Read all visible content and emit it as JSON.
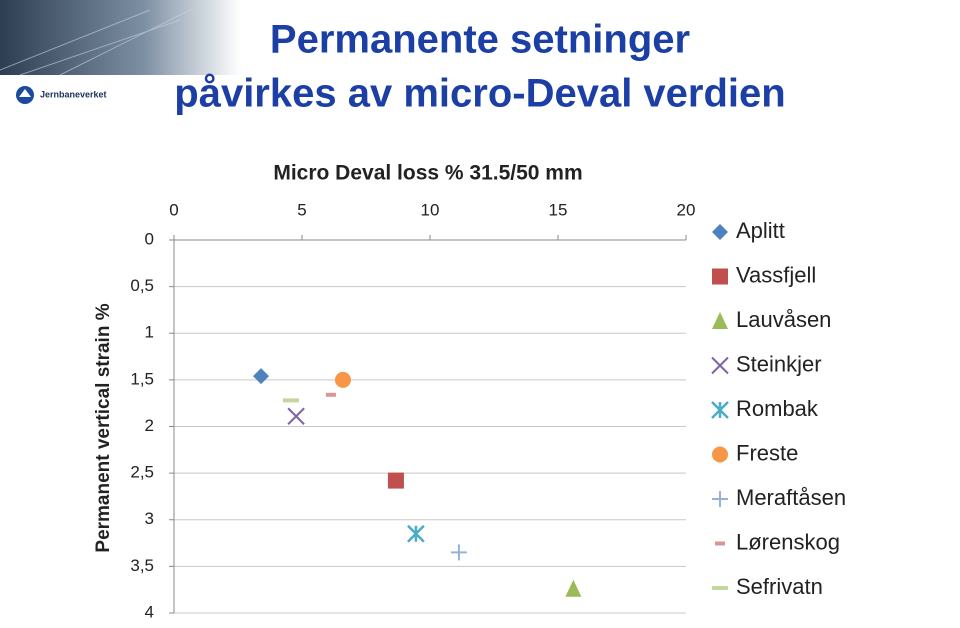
{
  "header": {
    "title": [
      "Permanente setninger",
      "påvirkes av micro-Deval verdien"
    ],
    "logo": "Jernbaneverket"
  },
  "chart_data": {
    "type": "scatter",
    "title": "Micro Deval loss  %  31.5/50 mm",
    "y_label": "Permanent vertical strain  %",
    "xlim": [
      0,
      20
    ],
    "xticks": [
      0,
      5,
      10,
      15,
      20
    ],
    "x_axis_position": "top",
    "ylim": [
      0,
      4
    ],
    "y_reversed": true,
    "grid": true,
    "yticks": [
      0,
      {
        "value": 0.5,
        "label": "0,5"
      },
      1,
      {
        "value": 1.5,
        "label": "1,5"
      },
      2,
      {
        "value": 2.5,
        "label": "2,5"
      },
      3,
      {
        "value": 3.5,
        "label": "3,5"
      },
      4
    ],
    "legend": "right",
    "series": [
      {
        "name": "Aplitt",
        "color": "#4f81bd",
        "marker": "diamond",
        "x": [
          3.4
        ],
        "values": [
          1.46
        ]
      },
      {
        "name": "Vassfjell",
        "color": "#c0504d",
        "marker": "square",
        "x": [
          8.67
        ],
        "values": [
          2.58
        ]
      },
      {
        "name": "Lauvåsen",
        "color": "#9bbb59",
        "marker": "triangle",
        "x": [
          15.6
        ],
        "values": [
          3.74
        ]
      },
      {
        "name": "Steinkjer",
        "color": "#8064a2",
        "marker": "x",
        "x": [
          4.77
        ],
        "values": [
          1.89
        ]
      },
      {
        "name": "Rombak",
        "color": "#4bacc6",
        "marker": "asterisk",
        "x": [
          9.45
        ],
        "values": [
          3.15
        ]
      },
      {
        "name": "Freste",
        "color": "#f79646",
        "marker": "circle",
        "x": [
          6.6
        ],
        "values": [
          1.5
        ]
      },
      {
        "name": "Meraftåsen",
        "color": "#95b3d7",
        "marker": "plus",
        "x": [
          11.13
        ],
        "values": [
          3.35
        ]
      },
      {
        "name": "Lørenskog",
        "color": "#d99694",
        "marker": "dash",
        "x": [
          6.13
        ],
        "values": [
          1.66
        ]
      },
      {
        "name": "Sefrivatn",
        "color": "#c3d69b",
        "marker": "longdash",
        "x": [
          4.57
        ],
        "values": [
          1.72
        ]
      }
    ]
  }
}
